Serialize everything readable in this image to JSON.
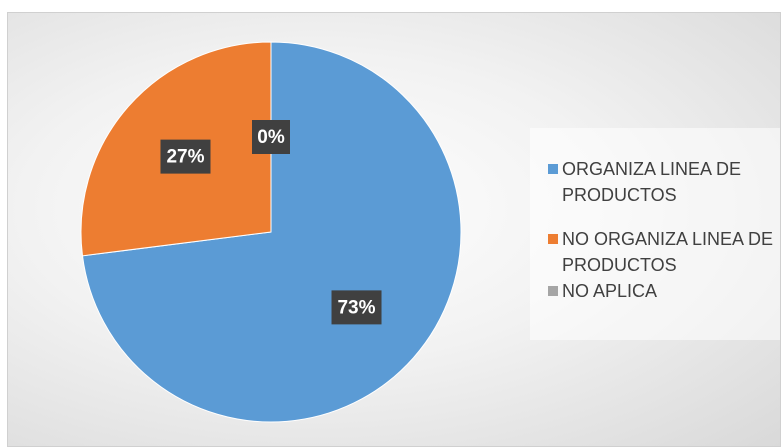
{
  "chart_data": {
    "type": "pie",
    "categories": [
      "ORGANIZA LINEA DE PRODUCTOS",
      "NO ORGANIZA LINEA DE PRODUCTOS",
      "NO APLICA"
    ],
    "values": [
      73,
      27,
      0
    ],
    "value_labels": [
      "73%",
      "27%",
      "0%"
    ],
    "colors": [
      "#5b9bd5",
      "#ed7d31",
      "#a5a5a5"
    ],
    "legend": "right"
  }
}
